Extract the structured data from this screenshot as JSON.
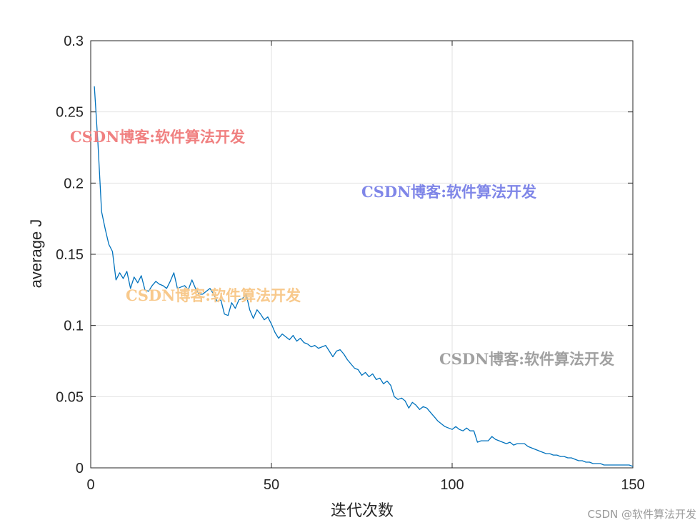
{
  "chart_data": {
    "type": "line",
    "title": "",
    "xlabel": "迭代次数",
    "ylabel": "average J",
    "xlim": [
      0,
      150
    ],
    "ylim": [
      0,
      0.3
    ],
    "xticks": [
      0,
      50,
      100,
      150
    ],
    "xtick_labels": [
      "0",
      "50",
      "100",
      "150"
    ],
    "yticks": [
      0,
      0.05,
      0.1,
      0.15,
      0.2,
      0.25,
      0.3
    ],
    "ytick_labels": [
      "0",
      "0.05",
      "0.1",
      "0.15",
      "0.2",
      "0.25",
      "0.3"
    ],
    "grid": true,
    "line_color": "#0072BD",
    "series": [
      {
        "x": [
          1,
          2,
          3,
          4,
          5,
          6,
          7,
          8,
          9,
          10,
          11,
          12,
          13,
          14,
          15,
          16,
          17,
          18,
          19,
          20,
          21,
          22,
          23,
          24,
          25,
          26,
          27,
          28,
          29,
          30,
          31,
          32,
          33,
          34,
          35,
          36,
          37,
          38,
          39,
          40,
          41,
          42,
          43,
          44,
          45,
          46,
          47,
          48,
          49,
          50,
          51,
          52,
          53,
          54,
          55,
          56,
          57,
          58,
          59,
          60,
          61,
          62,
          63,
          64,
          65,
          66,
          67,
          68,
          69,
          70,
          71,
          72,
          73,
          74,
          75,
          76,
          77,
          78,
          79,
          80,
          81,
          82,
          83,
          84,
          85,
          86,
          87,
          88,
          89,
          90,
          91,
          92,
          93,
          94,
          95,
          96,
          97,
          98,
          99,
          100,
          101,
          102,
          103,
          104,
          105,
          106,
          107,
          108,
          109,
          110,
          111,
          112,
          113,
          114,
          115,
          116,
          117,
          118,
          119,
          120,
          121,
          122,
          123,
          124,
          125,
          126,
          127,
          128,
          129,
          130,
          131,
          132,
          133,
          134,
          135,
          136,
          137,
          138,
          139,
          140,
          141,
          142,
          143,
          144,
          145,
          146,
          147,
          148,
          149,
          150
        ],
        "y": [
          0.268,
          0.228,
          0.18,
          0.168,
          0.157,
          0.152,
          0.132,
          0.137,
          0.133,
          0.138,
          0.126,
          0.134,
          0.13,
          0.135,
          0.125,
          0.124,
          0.128,
          0.131,
          0.129,
          0.128,
          0.126,
          0.131,
          0.137,
          0.126,
          0.127,
          0.128,
          0.125,
          0.132,
          0.126,
          0.122,
          0.122,
          0.124,
          0.126,
          0.122,
          0.117,
          0.118,
          0.108,
          0.107,
          0.116,
          0.112,
          0.118,
          0.119,
          0.122,
          0.111,
          0.105,
          0.111,
          0.108,
          0.104,
          0.106,
          0.101,
          0.095,
          0.091,
          0.094,
          0.092,
          0.09,
          0.093,
          0.089,
          0.091,
          0.088,
          0.087,
          0.085,
          0.086,
          0.084,
          0.085,
          0.086,
          0.082,
          0.078,
          0.082,
          0.083,
          0.08,
          0.076,
          0.073,
          0.07,
          0.069,
          0.065,
          0.067,
          0.064,
          0.066,
          0.062,
          0.063,
          0.059,
          0.061,
          0.058,
          0.05,
          0.048,
          0.049,
          0.047,
          0.042,
          0.046,
          0.044,
          0.041,
          0.043,
          0.042,
          0.039,
          0.036,
          0.033,
          0.031,
          0.029,
          0.028,
          0.027,
          0.029,
          0.027,
          0.026,
          0.028,
          0.026,
          0.026,
          0.018,
          0.019,
          0.019,
          0.019,
          0.022,
          0.02,
          0.019,
          0.018,
          0.017,
          0.018,
          0.016,
          0.017,
          0.017,
          0.017,
          0.015,
          0.014,
          0.013,
          0.012,
          0.011,
          0.01,
          0.01,
          0.009,
          0.009,
          0.008,
          0.008,
          0.007,
          0.007,
          0.006,
          0.005,
          0.005,
          0.004,
          0.004,
          0.003,
          0.003,
          0.003,
          0.002,
          0.002,
          0.002,
          0.002,
          0.002,
          0.002,
          0.002,
          0.002,
          0.001
        ]
      }
    ]
  },
  "watermarks": [
    {
      "text": "CSDN博客:软件算法开发",
      "color": "#f08080"
    },
    {
      "text": "CSDN博客:软件算法开发",
      "color": "#7f86e8"
    },
    {
      "text": "CSDN博客:软件算法开发",
      "color": "#f8c98c"
    },
    {
      "text": "CSDN博客:软件算法开发",
      "color": "#a0a0a0"
    }
  ],
  "credit": "CSDN @软件算法开发"
}
